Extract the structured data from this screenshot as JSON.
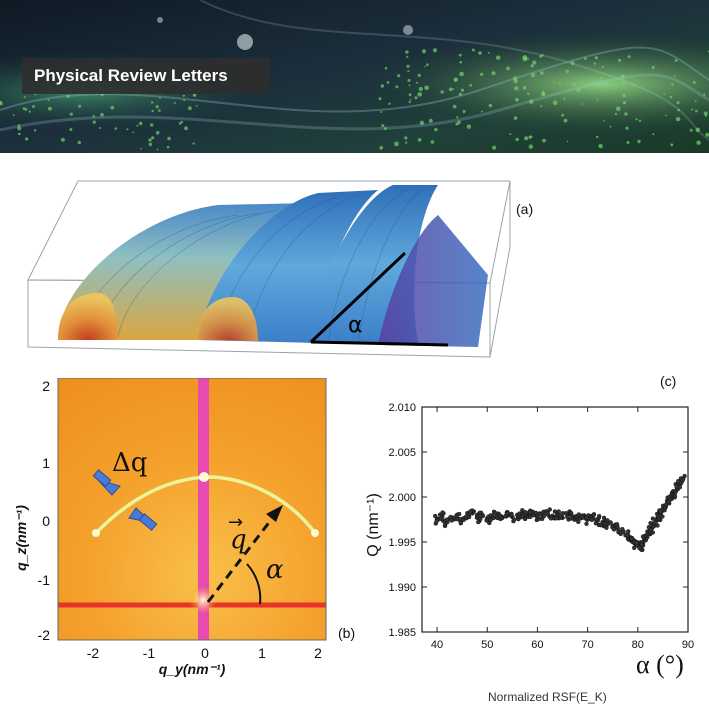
{
  "banner": {
    "journal": "Physical Review Letters"
  },
  "panel_a": {
    "label": "(a)",
    "angle_symbol": "α"
  },
  "panel_b": {
    "label": "(b)",
    "delta_q": "Δq",
    "q_vector": "q",
    "vector_arrow": "→",
    "angle_symbol": "α",
    "ylabel": "q_z(nm⁻¹)",
    "xlabel": "q_y(nm⁻¹)",
    "xticks": [
      "-2",
      "-1",
      "0",
      "1",
      "2"
    ],
    "yticks": [
      "2",
      "1",
      "0",
      "-1",
      "-2"
    ]
  },
  "panel_c": {
    "label": "(c)",
    "alpha_axis": "α (°)"
  },
  "bottom_caption": "Normalized RSF(E_K)",
  "chart_data": {
    "type": "scatter",
    "ylabel": "Q (nm⁻¹)",
    "xlabel": "",
    "xlim": [
      37,
      90
    ],
    "ylim": [
      1.985,
      2.01
    ],
    "xticks": [
      "40",
      "50",
      "60",
      "70",
      "80",
      "90"
    ],
    "yticks": [
      "2.010",
      "2.005",
      "2.000",
      "1.995",
      "1.990",
      "1.985"
    ],
    "grid": false,
    "x": [
      40,
      41,
      42,
      43,
      44,
      45,
      46,
      47,
      48,
      49,
      50,
      51,
      52,
      53,
      54,
      55,
      56,
      57,
      58,
      59,
      60,
      61,
      62,
      63,
      64,
      65,
      66,
      67,
      68,
      69,
      70,
      71,
      72,
      73,
      74,
      75,
      76,
      77,
      78,
      78.5,
      79,
      79.5,
      80,
      80.5,
      81,
      81.5,
      82,
      82.5,
      83,
      83.5,
      84,
      84.5,
      85,
      85.5,
      86,
      86.5,
      87,
      87.5,
      88,
      88.5,
      89
    ],
    "y": [
      1.9975,
      1.9978,
      1.9972,
      1.9976,
      1.998,
      1.9975,
      1.9978,
      1.9982,
      1.9977,
      1.998,
      1.9976,
      1.9979,
      1.9981,
      1.9977,
      1.9983,
      1.9978,
      1.998,
      1.9982,
      1.9979,
      1.9981,
      1.9978,
      1.998,
      1.9983,
      1.9979,
      1.9981,
      1.9977,
      1.998,
      1.9978,
      1.9976,
      1.9978,
      1.9975,
      1.9976,
      1.9974,
      1.9972,
      1.997,
      1.9968,
      1.9965,
      1.9962,
      1.9958,
      1.9955,
      1.995,
      1.9948,
      1.9946,
      1.9945,
      1.9948,
      1.9952,
      1.9958,
      1.9962,
      1.9968,
      1.9972,
      1.9978,
      1.9982,
      1.9986,
      1.999,
      1.9995,
      1.9998,
      2.0002,
      2.0006,
      2.001,
      2.0015,
      2.002
    ]
  }
}
